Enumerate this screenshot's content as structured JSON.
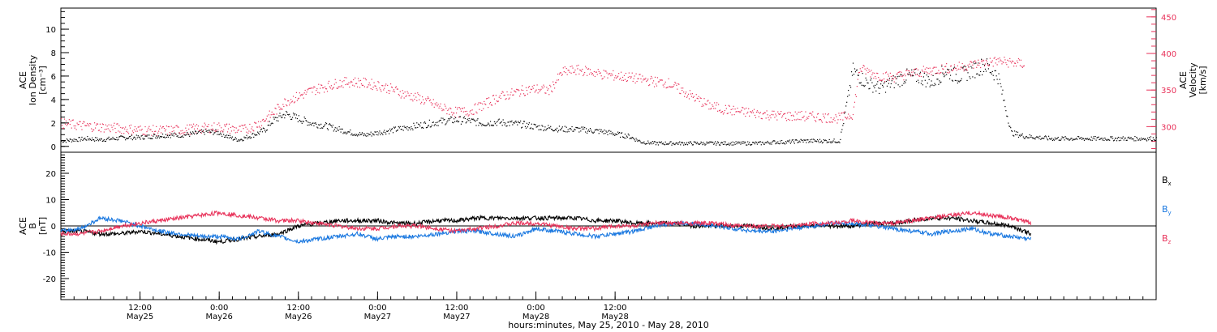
{
  "colors": {
    "black": "#000000",
    "pink": "#e8325a",
    "blue": "#1a78e0",
    "axis_right": "#e8325a"
  },
  "chart_data": [
    {
      "type": "scatter",
      "panel": "top",
      "left_ylabel_lines": [
        "ACE",
        "Ion Density",
        "[cm⁻³]"
      ],
      "right_ylabel_lines": [
        "ACE",
        "Velocity",
        "[km/s]"
      ],
      "ylim_left": [
        -0.5,
        11.8
      ],
      "ylim_right": [
        265,
        462
      ],
      "yticks_left": [
        "0",
        "2",
        "4",
        "6",
        "8",
        "10"
      ],
      "yticks_right": [
        "300",
        "350",
        "400",
        "450"
      ],
      "series": [
        {
          "axis": "left",
          "color": "#000000",
          "x_hours": [
            0,
            2,
            4,
            6,
            8,
            10,
            12,
            14,
            16,
            18,
            20,
            22,
            24,
            26,
            27,
            28,
            30,
            31,
            32,
            34,
            36,
            38,
            40,
            42,
            44,
            46,
            48,
            50,
            52,
            54,
            56,
            58,
            60,
            62,
            64,
            66,
            68,
            70,
            72,
            74,
            76,
            78,
            80,
            82,
            84,
            86,
            88,
            90,
            92,
            94,
            96,
            98,
            100,
            102,
            104,
            106,
            108,
            110,
            112,
            114,
            116,
            118,
            120,
            121,
            122,
            124,
            126,
            128,
            130,
            132,
            134,
            136,
            138,
            140,
            142,
            144,
            146,
            148,
            150,
            152,
            154,
            156,
            158,
            160,
            162,
            164,
            166
          ],
          "y": [
            0.5,
            0.6,
            0.7,
            0.6,
            0.7,
            0.8,
            0.8,
            0.9,
            1.0,
            1.0,
            1.1,
            1.3,
            1.2,
            0.7,
            0.6,
            0.8,
            1.2,
            1.5,
            2.2,
            2.8,
            2.4,
            2.0,
            1.8,
            1.5,
            1.2,
            1.0,
            1.2,
            1.4,
            1.6,
            1.8,
            2.0,
            2.2,
            2.3,
            2.2,
            2.0,
            2.1,
            2.0,
            1.9,
            1.7,
            1.6,
            1.5,
            1.5,
            1.4,
            1.3,
            1.1,
            0.9,
            0.4,
            0.3,
            0.3,
            0.3,
            0.3,
            0.3,
            0.3,
            0.3,
            0.3,
            0.3,
            0.4,
            0.4,
            0.5,
            0.5,
            0.5,
            0.5,
            6.5,
            6.0,
            5.5,
            5.0,
            5.5,
            6.0,
            6.0,
            5.5,
            6.5,
            6.0,
            6.5,
            7.0,
            6.0,
            1.2,
            0.9,
            0.8,
            0.7,
            0.7,
            0.7,
            0.7,
            0.7,
            0.7,
            0.7,
            0.7,
            0.7
          ]
        },
        {
          "axis": "right",
          "color": "#e8325a",
          "x_hours": [
            0,
            3,
            6,
            9,
            12,
            15,
            18,
            21,
            24,
            27,
            28,
            30,
            32,
            34,
            36,
            38,
            40,
            42,
            44,
            46,
            48,
            50,
            52,
            54,
            56,
            58,
            60,
            62,
            64,
            66,
            68,
            70,
            72,
            74,
            76,
            78,
            80,
            82,
            84,
            86,
            88,
            90,
            92,
            94,
            96,
            98,
            100,
            102,
            104,
            106,
            108,
            110,
            112,
            114,
            116,
            118,
            120,
            121,
            124,
            126,
            128,
            130,
            132,
            134,
            136,
            138,
            140,
            142,
            144,
            146
          ],
          "y": [
            305,
            302,
            300,
            298,
            296,
            295,
            296,
            298,
            300,
            296,
            297,
            305,
            318,
            335,
            342,
            350,
            355,
            360,
            362,
            360,
            357,
            352,
            345,
            340,
            333,
            325,
            320,
            322,
            330,
            340,
            345,
            350,
            352,
            350,
            375,
            378,
            376,
            372,
            370,
            368,
            365,
            362,
            360,
            350,
            340,
            330,
            325,
            322,
            320,
            318,
            316,
            315,
            315,
            314,
            313,
            312,
            318,
            380,
            370,
            368,
            372,
            375,
            378,
            380,
            382,
            385,
            388,
            390,
            388,
            386
          ]
        }
      ]
    },
    {
      "type": "line",
      "panel": "bottom",
      "ylabel_lines": [
        "ACE",
        "B",
        "[nT]"
      ],
      "ylim": [
        -28,
        28
      ],
      "yticks": [
        "20",
        "10",
        "0",
        "-10",
        "-20"
      ],
      "x_hours": [
        0,
        3,
        6,
        9,
        12,
        15,
        18,
        21,
        24,
        27,
        30,
        33,
        36,
        39,
        42,
        45,
        48,
        51,
        54,
        57,
        60,
        63,
        66,
        69,
        72,
        75,
        78,
        81,
        84,
        87,
        90,
        93,
        96,
        99,
        102,
        105,
        108,
        111,
        114,
        117,
        120,
        123,
        126,
        129,
        132,
        135,
        138,
        141,
        144,
        147
      ],
      "series": [
        {
          "name_base": "B",
          "name_sub": "x",
          "color": "#000000",
          "values": [
            -2,
            -2,
            -3,
            -3,
            -2,
            -3,
            -4,
            -5,
            -6,
            -5,
            -4,
            -3,
            0,
            1,
            2,
            2,
            2,
            1,
            1,
            2,
            2,
            3,
            3,
            3,
            3,
            3,
            3,
            2,
            2,
            1,
            1,
            1,
            0,
            0,
            0,
            0,
            -1,
            0,
            0,
            0,
            0,
            1,
            1,
            2,
            3,
            3,
            2,
            1,
            0,
            -3
          ]
        },
        {
          "name_base": "B",
          "name_sub": "y",
          "color": "#1a78e0",
          "values": [
            -2,
            -1,
            3,
            2,
            0,
            -2,
            -3,
            -4,
            -4,
            -5,
            -2,
            -4,
            -6,
            -5,
            -4,
            -3,
            -5,
            -4,
            -4,
            -3,
            -2,
            -2,
            -3,
            -4,
            -1,
            -2,
            -3,
            -4,
            -3,
            -2,
            0,
            1,
            1,
            0,
            -1,
            -2,
            -2,
            -1,
            0,
            1,
            1,
            0,
            -1,
            -2,
            -3,
            -2,
            -1,
            -3,
            -4,
            -5
          ]
        },
        {
          "name_base": "B",
          "name_sub": "z",
          "color": "#e8325a",
          "values": [
            -3,
            -3,
            -2,
            0,
            1,
            2,
            3,
            4,
            5,
            4,
            3,
            2,
            2,
            1,
            0,
            -1,
            -1,
            0,
            0,
            -1,
            -2,
            -1,
            0,
            1,
            1,
            0,
            -1,
            -1,
            0,
            0,
            1,
            1,
            1,
            1,
            0,
            0,
            0,
            0,
            1,
            1,
            2,
            1,
            1,
            2,
            3,
            4,
            5,
            4,
            3,
            1
          ]
        }
      ]
    }
  ],
  "x_axis": {
    "hours_total": 166,
    "ticks": [
      {
        "hour": 12,
        "time": "12:00",
        "day": "May25"
      },
      {
        "hour": 24,
        "time": "0:00",
        "day": "May26"
      },
      {
        "hour": 36,
        "time": "12:00",
        "day": "May26"
      },
      {
        "hour": 48,
        "time": "0:00",
        "day": "May27"
      },
      {
        "hour": 60,
        "time": "12:00",
        "day": "May27"
      },
      {
        "hour": 72,
        "time": "0:00",
        "day": "May28"
      },
      {
        "hour": 84,
        "time": "12:00",
        "day": "May28"
      }
    ],
    "xlabel": "hours:minutes, May 25, 2010 - May 28, 2010"
  }
}
